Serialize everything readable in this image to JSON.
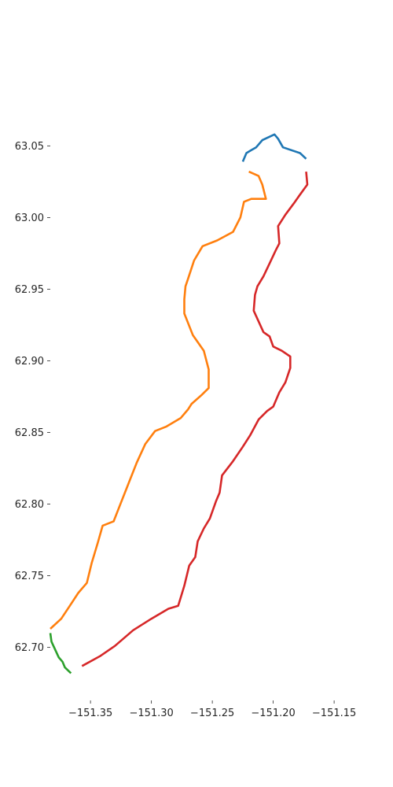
{
  "chart_data": {
    "type": "line",
    "title": "",
    "xlabel": "",
    "ylabel": "",
    "xlim": [
      -151.383,
      -151.132
    ],
    "ylim": [
      62.663,
      63.087
    ],
    "x_ticks": [
      "−151.35",
      "−151.30",
      "−151.25",
      "−151.20",
      "−151.15"
    ],
    "x_tick_values": [
      -151.35,
      -151.3,
      -151.25,
      -151.2,
      -151.15
    ],
    "y_ticks": [
      "63.05",
      "63.00",
      "62.95",
      "62.90",
      "62.85",
      "62.80",
      "62.75",
      "62.70"
    ],
    "y_tick_values": [
      63.05,
      63.0,
      62.95,
      62.9,
      62.85,
      62.8,
      62.75,
      62.7
    ],
    "grid": false,
    "series": [
      {
        "color": "#1f77b4",
        "points": [
          [
            -151.225,
            63.039
          ],
          [
            -151.222,
            63.045
          ],
          [
            -151.218,
            63.047
          ],
          [
            -151.214,
            63.049
          ],
          [
            -151.209,
            63.054
          ],
          [
            -151.199,
            63.058
          ],
          [
            -151.196,
            63.055
          ],
          [
            -151.192,
            63.049
          ],
          [
            -151.178,
            63.045
          ],
          [
            -151.173,
            63.041
          ]
        ]
      },
      {
        "color": "#ff7f0e",
        "points": [
          [
            -151.22,
            63.032
          ],
          [
            -151.212,
            63.029
          ],
          [
            -151.209,
            63.023
          ],
          [
            -151.206,
            63.013
          ],
          [
            -151.218,
            63.013
          ],
          [
            -151.224,
            63.011
          ],
          [
            -151.227,
            63.0
          ],
          [
            -151.233,
            62.99
          ],
          [
            -151.246,
            62.984
          ],
          [
            -151.258,
            62.98
          ],
          [
            -151.265,
            62.97
          ],
          [
            -151.27,
            62.957
          ],
          [
            -151.272,
            62.952
          ],
          [
            -151.273,
            62.943
          ],
          [
            -151.273,
            62.933
          ],
          [
            -151.266,
            62.918
          ],
          [
            -151.257,
            62.907
          ],
          [
            -151.253,
            62.894
          ],
          [
            -151.253,
            62.881
          ],
          [
            -151.259,
            62.876
          ],
          [
            -151.267,
            62.87
          ],
          [
            -151.27,
            62.866
          ],
          [
            -151.276,
            62.86
          ],
          [
            -151.288,
            62.854
          ],
          [
            -151.297,
            62.851
          ],
          [
            -151.305,
            62.842
          ],
          [
            -151.312,
            62.829
          ],
          [
            -151.319,
            62.814
          ],
          [
            -151.325,
            62.801
          ],
          [
            -151.331,
            62.788
          ],
          [
            -151.34,
            62.785
          ],
          [
            -151.344,
            62.773
          ],
          [
            -151.349,
            62.759
          ],
          [
            -151.353,
            62.745
          ],
          [
            -151.36,
            62.738
          ],
          [
            -151.367,
            62.729
          ],
          [
            -151.374,
            62.72
          ],
          [
            -151.383,
            62.713
          ]
        ]
      },
      {
        "color": "#2ca02c",
        "points": [
          [
            -151.383,
            62.71
          ],
          [
            -151.382,
            62.704
          ],
          [
            -151.376,
            62.693
          ],
          [
            -151.373,
            62.69
          ],
          [
            -151.371,
            62.686
          ],
          [
            -151.366,
            62.682
          ]
        ]
      },
      {
        "color": "#d62728",
        "points": [
          [
            -151.173,
            63.032
          ],
          [
            -151.172,
            63.023
          ],
          [
            -151.178,
            63.016
          ],
          [
            -151.183,
            63.01
          ],
          [
            -151.19,
            63.002
          ],
          [
            -151.196,
            62.994
          ],
          [
            -151.195,
            62.982
          ],
          [
            -151.198,
            62.977
          ],
          [
            -151.203,
            62.968
          ],
          [
            -151.208,
            62.959
          ],
          [
            -151.213,
            62.952
          ],
          [
            -151.215,
            62.946
          ],
          [
            -151.216,
            62.935
          ],
          [
            -151.208,
            62.92
          ],
          [
            -151.203,
            62.917
          ],
          [
            -151.2,
            62.91
          ],
          [
            -151.193,
            62.907
          ],
          [
            -151.186,
            62.903
          ],
          [
            -151.186,
            62.895
          ],
          [
            -151.19,
            62.885
          ],
          [
            -151.195,
            62.878
          ],
          [
            -151.2,
            62.868
          ],
          [
            -151.205,
            62.865
          ],
          [
            -151.212,
            62.859
          ],
          [
            -151.219,
            62.848
          ],
          [
            -151.225,
            62.84
          ],
          [
            -151.233,
            62.83
          ],
          [
            -151.242,
            62.82
          ],
          [
            -151.244,
            62.808
          ],
          [
            -151.247,
            62.802
          ],
          [
            -151.252,
            62.79
          ],
          [
            -151.257,
            62.783
          ],
          [
            -151.262,
            62.774
          ],
          [
            -151.264,
            62.763
          ],
          [
            -151.269,
            62.757
          ],
          [
            -151.273,
            62.743
          ],
          [
            -151.278,
            62.729
          ],
          [
            -151.286,
            62.727
          ],
          [
            -151.3,
            62.72
          ],
          [
            -151.315,
            62.712
          ],
          [
            -151.33,
            62.701
          ],
          [
            -151.342,
            62.694
          ],
          [
            -151.357,
            62.687
          ]
        ]
      }
    ]
  }
}
